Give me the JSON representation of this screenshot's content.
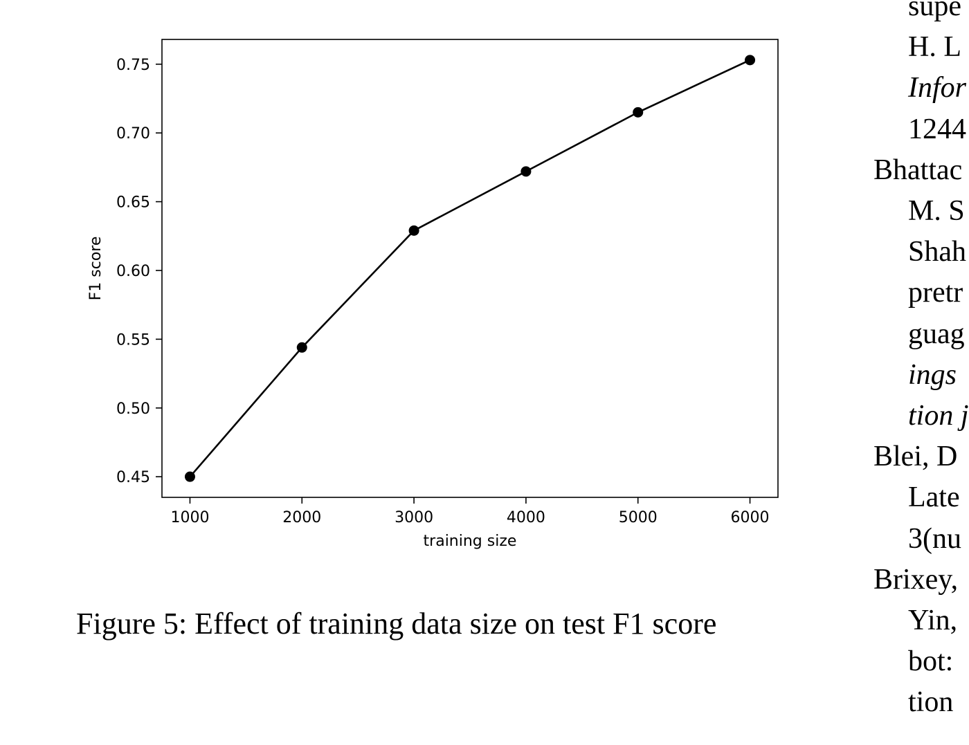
{
  "figure": {
    "caption": "Figure 5: Effect of training data size on test F1 score"
  },
  "chart_data": {
    "type": "line",
    "title": "",
    "xlabel": "training size",
    "ylabel": "F1 score",
    "x": [
      1000,
      2000,
      3000,
      4000,
      5000,
      6000
    ],
    "series": [
      {
        "values": [
          0.45,
          0.544,
          0.629,
          0.672,
          0.715,
          0.753
        ]
      }
    ],
    "xlim": [
      750,
      6250
    ],
    "ylim": [
      0.435,
      0.768
    ],
    "xticks": [
      1000,
      2000,
      3000,
      4000,
      5000,
      6000
    ],
    "xtick_labels": [
      "1000",
      "2000",
      "3000",
      "4000",
      "5000",
      "6000"
    ],
    "yticks": [
      0.45,
      0.5,
      0.55,
      0.6,
      0.65,
      0.7,
      0.75
    ],
    "ytick_labels": [
      "0.45",
      "0.50",
      "0.55",
      "0.60",
      "0.65",
      "0.70",
      "0.75"
    ],
    "grid": false,
    "legend": "none",
    "line_color": "#000000",
    "marker": "circle"
  },
  "references_fragment": [
    {
      "text": "supe",
      "style": "indent"
    },
    {
      "text": "H.  L",
      "style": "indent"
    },
    {
      "text": "Infor",
      "style": "indent-italic"
    },
    {
      "text": "1244",
      "style": "indent"
    },
    {
      "text": "Bhattac",
      "style": "hang"
    },
    {
      "text": "M. S",
      "style": "indent"
    },
    {
      "text": "Shah",
      "style": "indent"
    },
    {
      "text": "pretr",
      "style": "indent"
    },
    {
      "text": "guag",
      "style": "indent"
    },
    {
      "text": "ings",
      "style": "indent-italic"
    },
    {
      "text": "tion j",
      "style": "indent-italic"
    },
    {
      "text": "Blei,  D",
      "style": "hang"
    },
    {
      "text": "Late",
      "style": "indent"
    },
    {
      "text": "3(nu",
      "style": "indent"
    },
    {
      "text": "Brixey,",
      "style": "hang"
    },
    {
      "text": "Yin,",
      "style": "indent"
    },
    {
      "text": "bot:",
      "style": "indent"
    },
    {
      "text": "tion",
      "style": "indent"
    }
  ]
}
